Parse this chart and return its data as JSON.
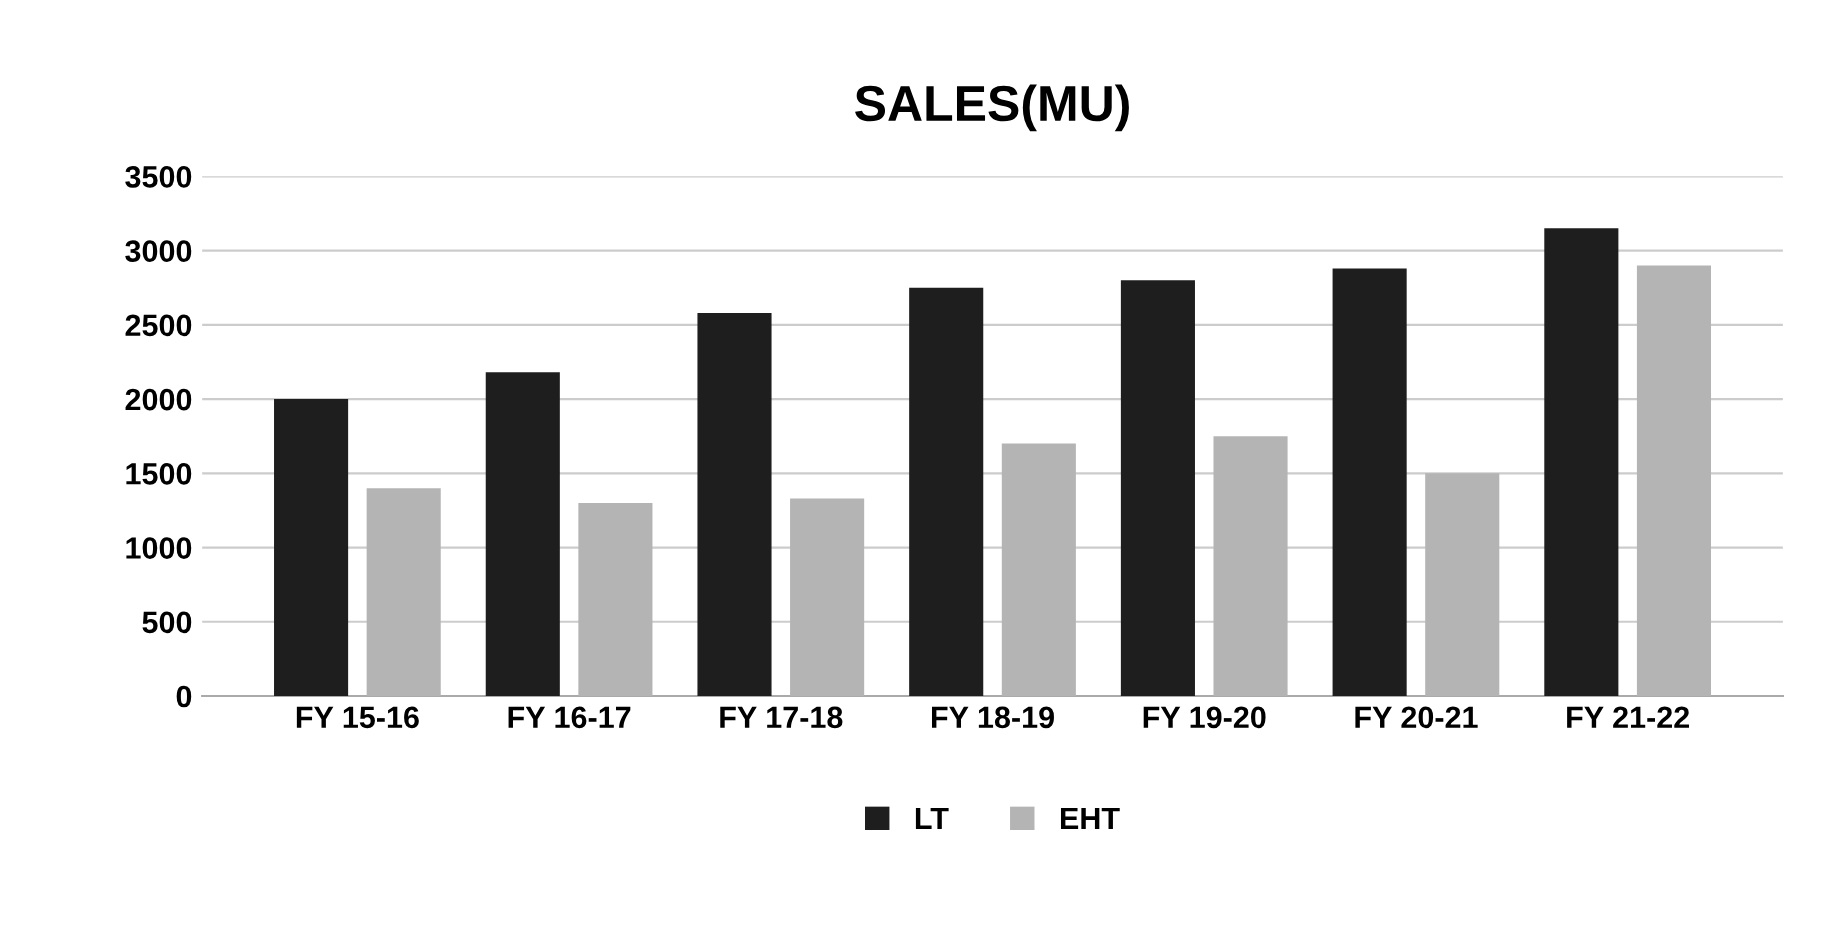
{
  "chart_data": {
    "type": "bar",
    "title": "SALES(MU)",
    "categories": [
      "FY 15-16",
      "FY 16-17",
      "FY 17-18",
      "FY 18-19",
      "FY 19-20",
      "FY 20-21",
      "FY 21-22"
    ],
    "series": [
      {
        "name": "LT",
        "color": "#1e1e1e",
        "values": [
          2000,
          2180,
          2580,
          2750,
          2800,
          2880,
          3150
        ]
      },
      {
        "name": "EHT",
        "color": "#b4b4b4",
        "values": [
          1400,
          1300,
          1330,
          1700,
          1750,
          1500,
          2900
        ]
      }
    ],
    "ylim": [
      0,
      3500
    ],
    "yticks": [
      0,
      500,
      1000,
      1500,
      2000,
      2500,
      3000,
      3500
    ],
    "grid": "y",
    "legend": "bottom"
  }
}
